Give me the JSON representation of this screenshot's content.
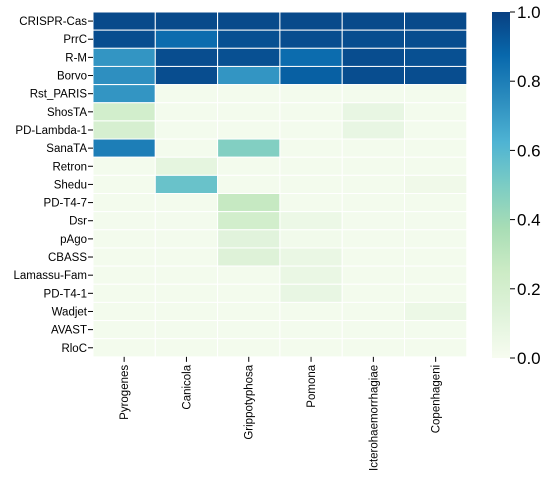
{
  "chart_data": {
    "type": "heatmap",
    "rows": [
      "CRISPR-Cas",
      "PrrC",
      "R-M",
      "Borvo",
      "Rst_PARIS",
      "ShosTA",
      "PD-Lambda-1",
      "SanaTA",
      "Retron",
      "Shedu",
      "PD-T4-7",
      "Dsr",
      "pAgo",
      "CBASS",
      "Lamassu-Fam",
      "PD-T4-1",
      "Wadjet",
      "AVAST",
      "RloC"
    ],
    "columns": [
      "Pyrogenes",
      "Canicola",
      "Grippotyphosa",
      "Pomona",
      "Icterohaemorrhagiae",
      "Copenhageni"
    ],
    "values": [
      [
        0.97,
        0.97,
        0.97,
        0.97,
        0.97,
        0.97
      ],
      [
        0.96,
        0.86,
        0.95,
        0.96,
        0.96,
        0.96
      ],
      [
        0.72,
        0.96,
        0.95,
        0.86,
        0.96,
        0.95
      ],
      [
        0.74,
        0.96,
        0.72,
        0.9,
        0.96,
        0.96
      ],
      [
        0.72,
        0.02,
        0.02,
        0.02,
        0.02,
        0.02
      ],
      [
        0.21,
        0.02,
        0.02,
        0.02,
        0.08,
        0.02
      ],
      [
        0.19,
        0.02,
        0.02,
        0.02,
        0.08,
        0.02
      ],
      [
        0.8,
        0.02,
        0.48,
        0.02,
        0.02,
        0.02
      ],
      [
        0.02,
        0.1,
        0.02,
        0.02,
        0.02,
        0.02
      ],
      [
        0.02,
        0.55,
        0.02,
        0.02,
        0.02,
        0.04
      ],
      [
        0.02,
        0.02,
        0.27,
        0.02,
        0.02,
        0.02
      ],
      [
        0.02,
        0.02,
        0.21,
        0.06,
        0.02,
        0.02
      ],
      [
        0.02,
        0.02,
        0.12,
        0.03,
        0.02,
        0.02
      ],
      [
        0.02,
        0.02,
        0.14,
        0.07,
        0.02,
        0.02
      ],
      [
        0.02,
        0.02,
        0.02,
        0.07,
        0.02,
        0.02
      ],
      [
        0.02,
        0.02,
        0.02,
        0.08,
        0.02,
        0.02
      ],
      [
        0.02,
        0.02,
        0.02,
        0.02,
        0.02,
        0.06
      ],
      [
        0.02,
        0.02,
        0.02,
        0.02,
        0.02,
        0.02
      ],
      [
        0.02,
        0.02,
        0.02,
        0.02,
        0.02,
        0.02
      ]
    ],
    "colorbar": {
      "range": [
        0.0,
        1.0
      ],
      "ticks": [
        "0.0",
        "0.2",
        "0.4",
        "0.6",
        "0.8",
        "1.0"
      ],
      "colormap": "GnBu",
      "position": "right"
    },
    "title": "",
    "xlabel": "",
    "ylabel": ""
  }
}
